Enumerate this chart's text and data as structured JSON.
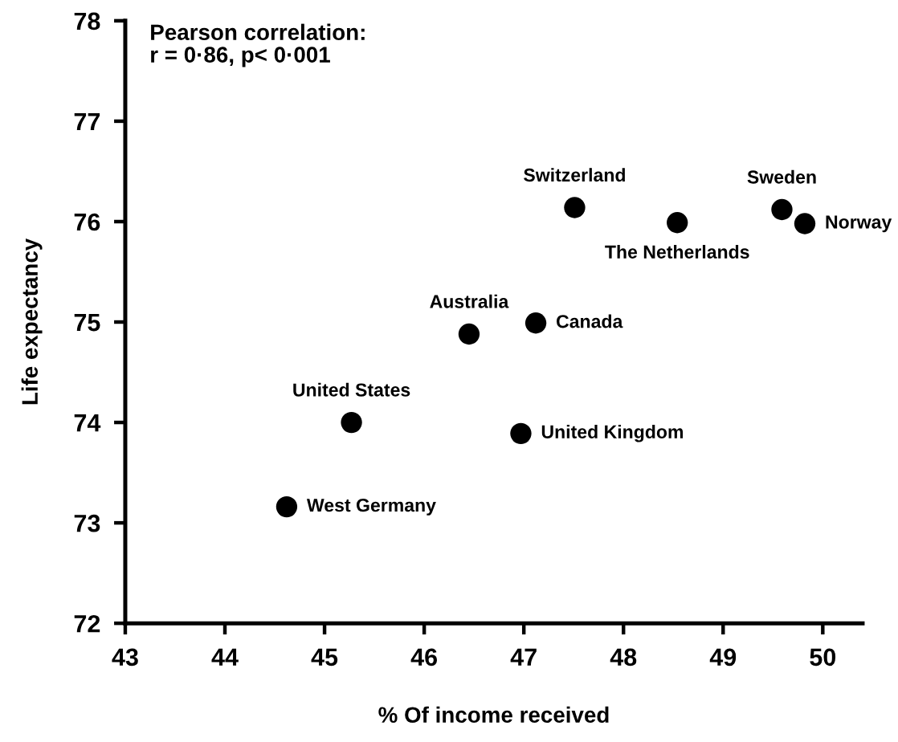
{
  "chart_data": {
    "type": "scatter",
    "xlabel": "% Of income received",
    "ylabel": "Life expectancy",
    "x": [
      47.51,
      48.54,
      49.59,
      49.82,
      46.45,
      47.12,
      45.27,
      46.97,
      44.62
    ],
    "values": [
      76.14,
      75.99,
      76.12,
      75.98,
      74.88,
      74.99,
      74.0,
      73.89,
      73.16
    ],
    "color": "#000000",
    "marker": "circle",
    "xlim": [
      43,
      50.4
    ],
    "ylim": [
      72,
      78
    ],
    "xticks": [
      43,
      44,
      45,
      46,
      47,
      48,
      49,
      50
    ],
    "yticks": [
      72,
      73,
      74,
      75,
      76,
      77,
      78
    ],
    "annotations": [
      "Pearson correlation:\nr = 0·86, p< 0·001",
      {
        "text": "Switzerland",
        "x": 47.51,
        "y": 76.14
      },
      {
        "text": "The Netherlands",
        "x": 48.54,
        "y": 75.99
      },
      {
        "text": "Sweden",
        "x": 49.59,
        "y": 76.12
      },
      {
        "text": "Norway",
        "x": 49.82,
        "y": 75.98
      },
      {
        "text": "Australia",
        "x": 46.45,
        "y": 74.88
      },
      {
        "text": "Canada",
        "x": 47.12,
        "y": 74.99
      },
      {
        "text": "United States",
        "x": 45.27,
        "y": 74.0
      },
      {
        "text": "United Kingdom",
        "x": 46.97,
        "y": 73.89
      },
      {
        "text": "West Germany",
        "x": 44.62,
        "y": 73.16
      }
    ]
  }
}
